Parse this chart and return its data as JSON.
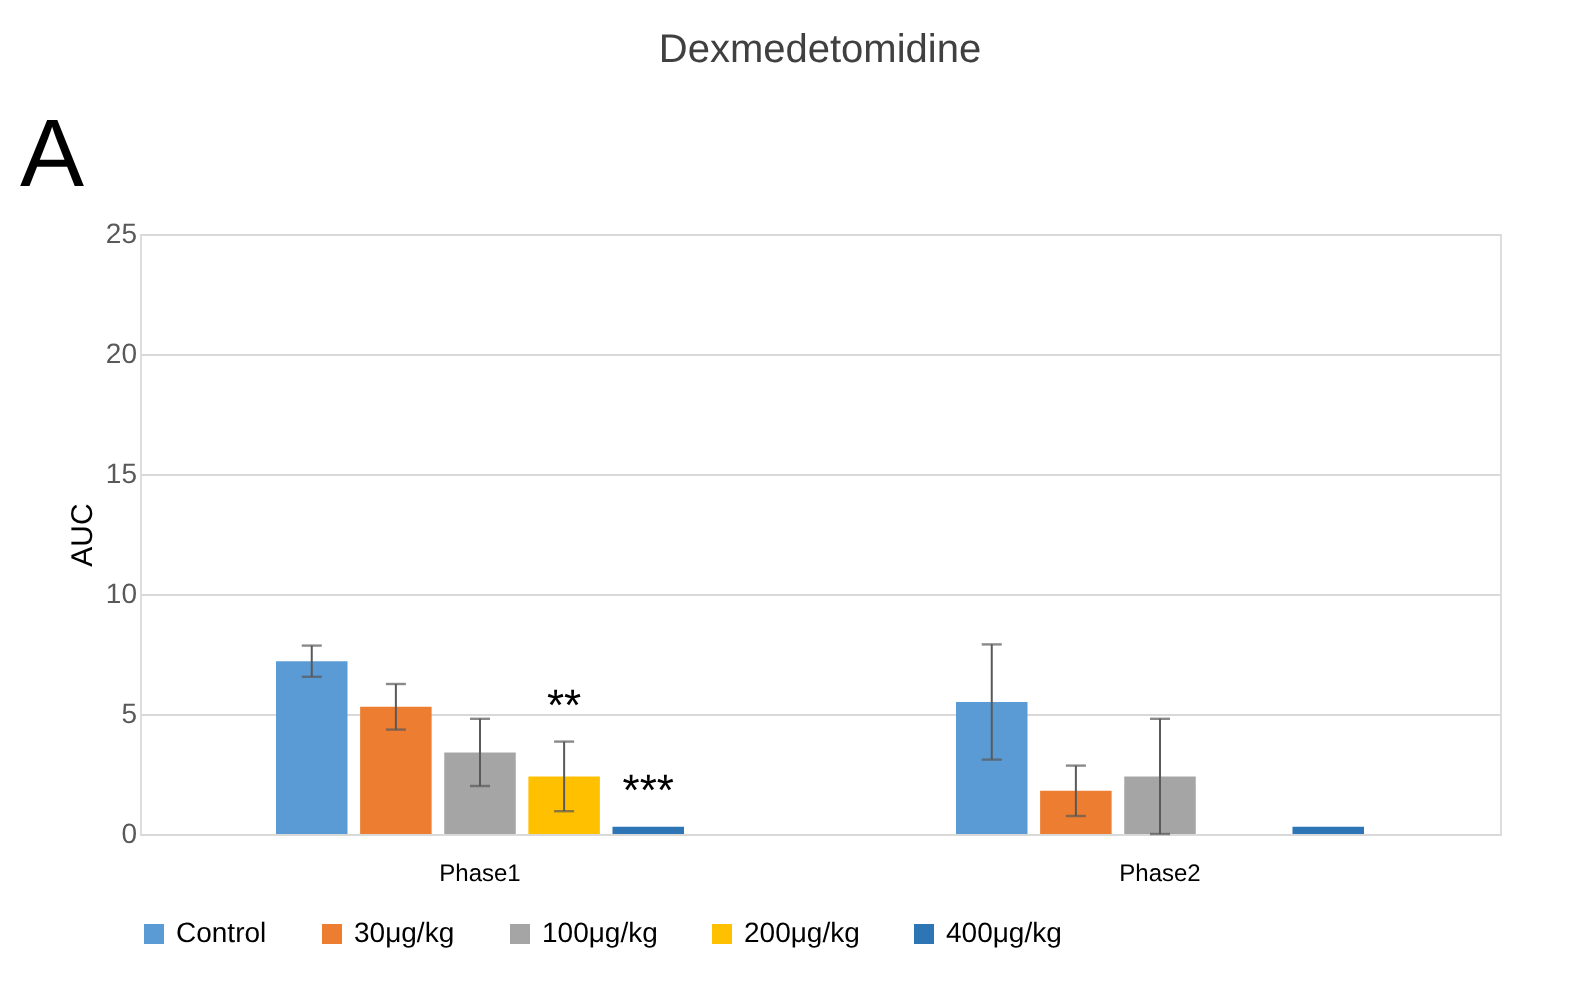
{
  "chart_data": {
    "type": "bar",
    "title": "Dexmedetomidine",
    "ylabel": "AUC",
    "categories": [
      "Phase1",
      "Phase2"
    ],
    "series": [
      {
        "name": "Control",
        "color": "#5b9bd5",
        "values": [
          7.2,
          5.5
        ],
        "errors": [
          0.65,
          2.4
        ]
      },
      {
        "name": "30μg/kg",
        "color": "#ed7d31",
        "values": [
          5.3,
          1.8
        ],
        "errors": [
          0.95,
          1.05
        ]
      },
      {
        "name": "100μg/kg",
        "color": "#a5a5a5",
        "values": [
          3.4,
          2.4
        ],
        "errors": [
          1.4,
          2.4
        ]
      },
      {
        "name": "200μg/kg",
        "color": "#ffc000",
        "values": [
          2.4,
          null
        ],
        "errors": [
          1.45,
          null
        ],
        "value_labels": [
          "**",
          null
        ]
      },
      {
        "name": "400μg/kg",
        "color": "#2e75b6",
        "values": [
          0.3,
          0.3
        ],
        "value_labels": [
          "***",
          null
        ]
      }
    ],
    "ylim": [
      0,
      25
    ],
    "yticks": [
      0,
      5,
      10,
      15,
      20,
      25
    ],
    "grid": "y",
    "legend": "bottom",
    "annotations": [
      "A"
    ]
  }
}
